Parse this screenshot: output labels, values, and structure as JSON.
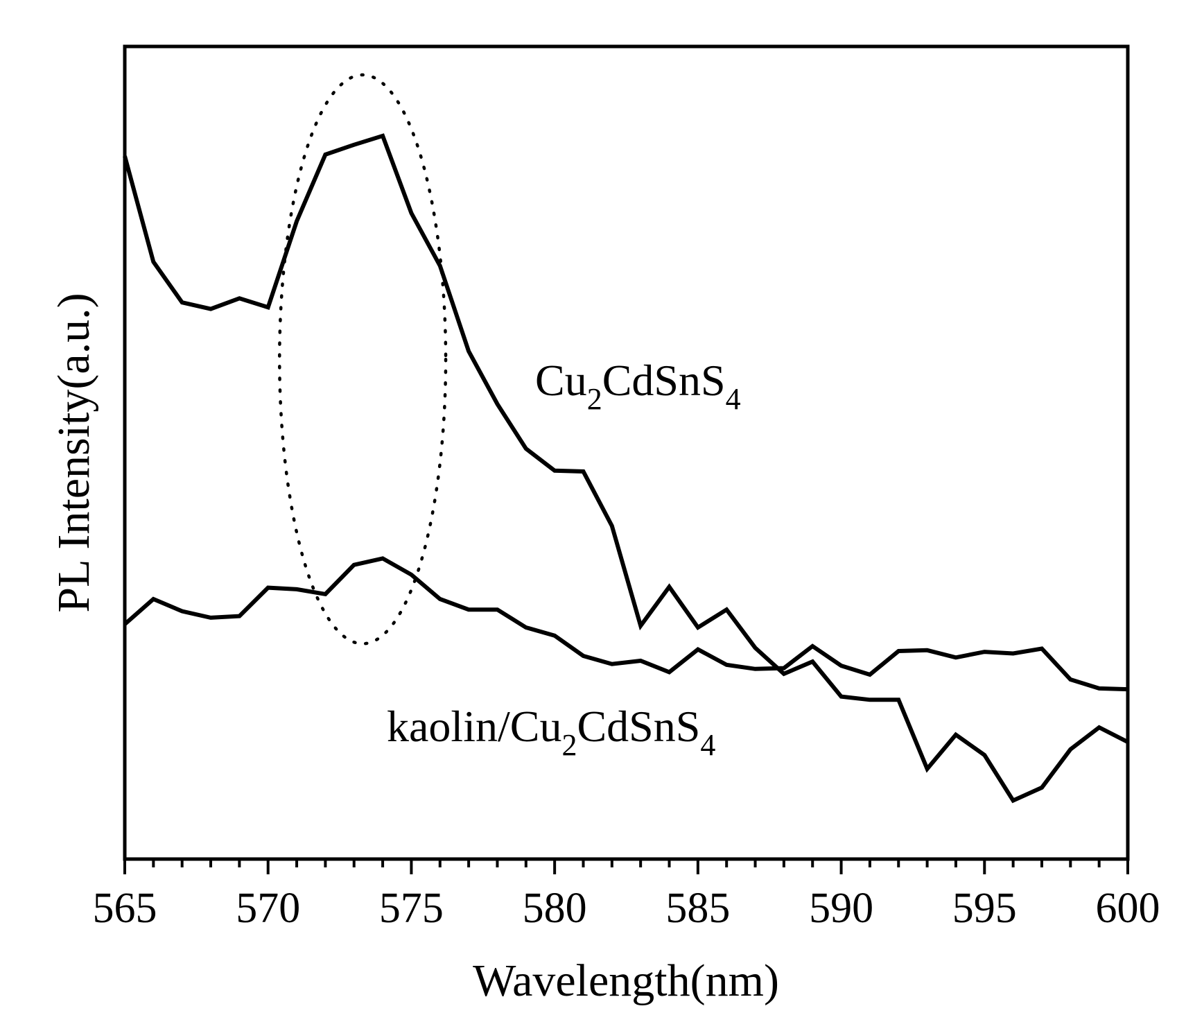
{
  "chart_data": {
    "type": "line",
    "title": "",
    "xlabel": "Wavelength(nm)",
    "ylabel": "PL Intensity(a.u.)",
    "xlim": [
      565,
      600
    ],
    "ylim": [
      0,
      100
    ],
    "xticks": [
      565,
      570,
      575,
      580,
      585,
      590,
      595,
      600
    ],
    "xtick_labels": [
      "565",
      "570",
      "575",
      "580",
      "585",
      "590",
      "595",
      "600"
    ],
    "grid": false,
    "legend": "none",
    "x": [
      565,
      566,
      567,
      568,
      569,
      570,
      571,
      572,
      573,
      574,
      575,
      576,
      577,
      578,
      579,
      580,
      581,
      582,
      583,
      584,
      585,
      586,
      587,
      588,
      589,
      590,
      591,
      592,
      593,
      594,
      595,
      596,
      597,
      598,
      599,
      600
    ],
    "series": [
      {
        "name": "Cu2CdSnS4",
        "label_parts": {
          "a": "Cu",
          "b": "2",
          "c": "CdSnS",
          "d": "4"
        },
        "values": [
          86.5,
          73.5,
          68.5,
          67.7,
          69.0,
          67.9,
          78.5,
          86.7,
          87.9,
          89.0,
          79.5,
          73.0,
          62.5,
          56.0,
          50.5,
          47.8,
          47.7,
          41.0,
          28.7,
          33.5,
          28.5,
          30.7,
          26.0,
          22.8,
          24.3,
          20.0,
          19.6,
          19.6,
          11.1,
          15.3,
          12.8,
          7.2,
          8.8,
          13.5,
          16.2,
          14.4
        ]
      },
      {
        "name": "kaolin/Cu2CdSnS4",
        "label_parts": {
          "a": "kaolin/Cu",
          "b": "2",
          "c": "CdSnS",
          "d": "4"
        },
        "values": [
          28.9,
          32.0,
          30.5,
          29.7,
          29.9,
          33.4,
          33.2,
          32.6,
          36.2,
          37.0,
          35.0,
          32.0,
          30.7,
          30.7,
          28.5,
          27.5,
          25.0,
          24.0,
          24.4,
          23.0,
          25.8,
          23.9,
          23.4,
          23.5,
          26.2,
          23.8,
          22.7,
          25.6,
          25.7,
          24.8,
          25.5,
          25.3,
          25.9,
          22.1,
          21.0,
          20.9
        ]
      }
    ],
    "annotations": [
      {
        "type": "dotted-ellipse",
        "center_x": 573.3,
        "center_y": 61.5,
        "half_width_x": 2.9,
        "half_height_y": 35.0
      }
    ]
  }
}
